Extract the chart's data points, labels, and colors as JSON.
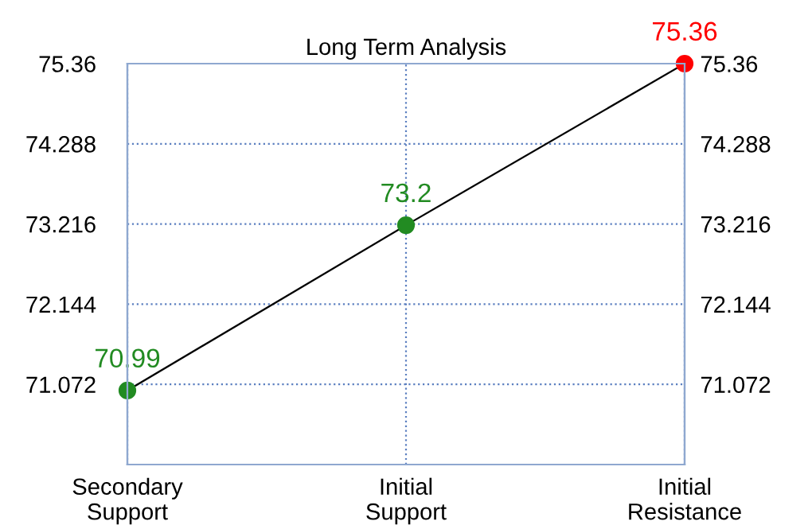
{
  "chart_data": {
    "type": "line",
    "title": "Long Term Analysis",
    "categories": [
      "Secondary\nSupport",
      "Initial\nSupport",
      "Initial\nResistance"
    ],
    "series": [
      {
        "color": "#000000",
        "colors": [
          "#228b22",
          "#228b22",
          "#ff0000"
        ],
        "values": [
          70.99,
          73.2,
          75.36
        ]
      }
    ],
    "ylim": [
      70.0,
      75.36
    ],
    "yticks": [
      71.072,
      72.144,
      73.216,
      74.288,
      75.36
    ],
    "y2lim": [
      70.0,
      75.36
    ],
    "y2ticks": [
      71.072,
      72.144,
      73.216,
      74.288,
      75.36
    ],
    "grid": true,
    "marker": "circle",
    "line_style": "solid",
    "data_labels": true,
    "legend": false
  }
}
